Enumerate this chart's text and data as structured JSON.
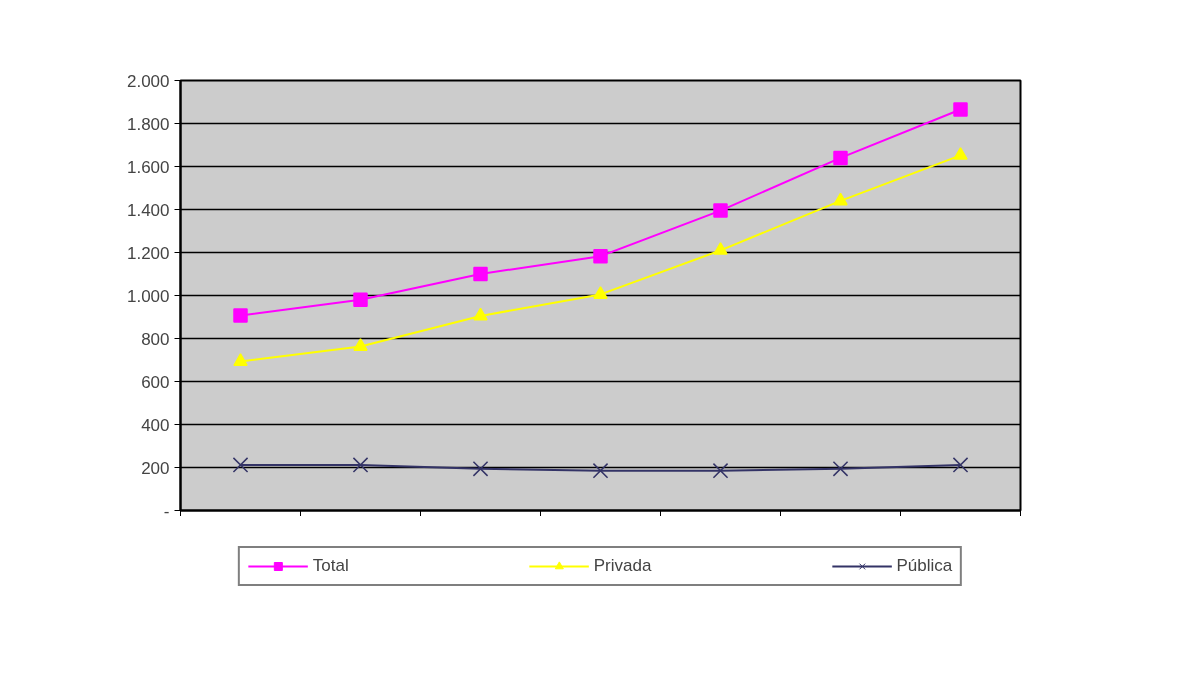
{
  "chart_data": {
    "type": "line",
    "categories": [
      null,
      null,
      null,
      null,
      null,
      null,
      null
    ],
    "series": [
      {
        "name": "Total",
        "color": "#ff00ff",
        "marker": "square",
        "values": [
          907,
          980,
          1100,
          1183,
          1395,
          1640,
          1865
        ]
      },
      {
        "name": "Privada",
        "color": "#ffff00",
        "marker": "triangle",
        "values": [
          693,
          763,
          905,
          1005,
          1210,
          1440,
          1652
        ]
      },
      {
        "name": "Pública",
        "color": "#333366",
        "marker": "cross",
        "values": [
          212,
          212,
          194,
          185,
          185,
          194,
          212
        ]
      }
    ],
    "ylim": [
      0,
      2000
    ],
    "yticks": [
      {
        "value": 0,
        "label": "-"
      },
      200,
      400,
      600,
      800,
      {
        "value": 1000,
        "label": "1.000"
      },
      {
        "value": 1200,
        "label": "1.200"
      },
      {
        "value": 1400,
        "label": "1.400"
      },
      {
        "value": 1600,
        "label": "1.600"
      },
      {
        "value": 1800,
        "label": "1.800"
      },
      {
        "value": 2000,
        "label": "2.000"
      }
    ],
    "grid": "y",
    "legend": "bottom",
    "tick_labels": "y"
  }
}
